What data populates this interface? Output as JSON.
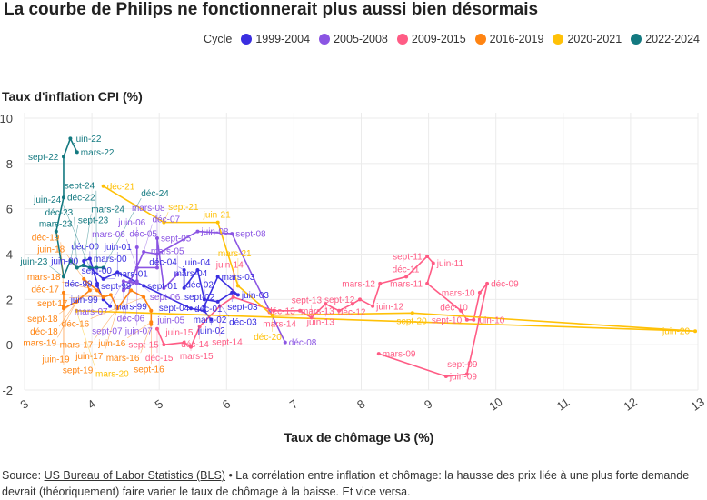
{
  "title": "La courbe de Philips ne fonctionnerait plus aussi bien désormais",
  "legend_title": "Cycle",
  "footer": {
    "prefix": "Source: ",
    "link": "US Bureau of Labor Statistics (BLS)",
    "text": " • La corrélation entre inflation et chômage: la hausse des prix liée à une plus forte demande devrait (théoriquement) faire varier le taux de chômage à la baisse. Et vice versa."
  },
  "chart_data": {
    "type": "line",
    "title": "La courbe de Philips ne fonctionnerait plus aussi bien désormais",
    "xlabel": "Taux de chômage U3 (%)",
    "ylabel": "Taux d'inflation CPI (%)",
    "xlim": [
      3,
      13
    ],
    "ylim": [
      -2,
      10
    ],
    "xticks": [
      3,
      4,
      5,
      6,
      7,
      8,
      9,
      10,
      11,
      12,
      13
    ],
    "yticks": [
      -2,
      0,
      2,
      4,
      6,
      8,
      10
    ],
    "grid": true,
    "legend_position": "top-right",
    "series": [
      {
        "name": "1999-2004",
        "color": "#3a2ee0",
        "points": [
          [
            "mars-99",
            4.27,
            1.7
          ],
          [
            "juin-99",
            4.17,
            2.0
          ],
          [
            "sept-99",
            4.08,
            2.6
          ],
          [
            "déc-99",
            4.08,
            2.7
          ],
          [
            "mars-00",
            3.97,
            3.8
          ],
          [
            "juin-00",
            3.88,
            3.7
          ],
          [
            "sept-00",
            3.88,
            3.5
          ],
          [
            "déc-00",
            3.97,
            3.4
          ],
          [
            "mars-01",
            4.17,
            2.9
          ],
          [
            "juin-01",
            4.38,
            3.2
          ],
          [
            "sept-01",
            4.77,
            2.6
          ],
          [
            "déc-01",
            5.47,
            1.6
          ],
          [
            "mars-02",
            5.67,
            1.5
          ],
          [
            "juin-02",
            5.77,
            1.1
          ],
          [
            "sept-02",
            5.67,
            1.5
          ],
          [
            "déc-02",
            5.67,
            1.7
          ],
          [
            "mars-03",
            5.87,
            3.0
          ],
          [
            "juin-03",
            6.17,
            2.2
          ],
          [
            "sept-03",
            6.08,
            2.3
          ],
          [
            "déc-03",
            5.87,
            1.9
          ],
          [
            "mars-04",
            5.67,
            2.0
          ],
          [
            "juin-04",
            5.57,
            3.3
          ],
          [
            "sept-04",
            5.37,
            2.5
          ],
          [
            "déc-04",
            5.37,
            3.3
          ]
        ]
      },
      {
        "name": "2005-2008",
        "color": "#8b55e3",
        "points": [
          [
            "mars-05",
            5.27,
            3.1
          ],
          [
            "juin-05",
            5.07,
            2.5
          ],
          [
            "sept-05",
            4.97,
            4.7
          ],
          [
            "déc-05",
            4.97,
            3.4
          ],
          [
            "mars-06",
            4.67,
            3.4
          ],
          [
            "juin-06",
            4.67,
            4.3
          ],
          [
            "sept-06",
            4.67,
            2.8
          ],
          [
            "déc-06",
            4.47,
            2.4
          ],
          [
            "mars-07",
            4.47,
            2.8
          ],
          [
            "juin-07",
            4.67,
            2.7
          ],
          [
            "sept-07",
            4.57,
            2.8
          ],
          [
            "déc-07",
            4.77,
            4.1
          ],
          [
            "mars-08",
            4.97,
            4.0
          ],
          [
            "juin-08",
            5.57,
            5.0
          ],
          [
            "sept-08",
            6.08,
            4.9
          ],
          [
            "déc-08",
            6.87,
            0.1
          ]
        ]
      },
      {
        "name": "2009-2015",
        "color": "#ff5c85",
        "points": [
          [
            "mars-09",
            8.26,
            -0.4
          ],
          [
            "juin-09",
            9.26,
            -1.4
          ],
          [
            "sept-09",
            9.57,
            -1.3
          ],
          [
            "déc-09",
            9.87,
            2.7
          ],
          [
            "mars-10",
            9.76,
            2.3
          ],
          [
            "juin-10",
            9.67,
            1.1
          ],
          [
            "sept-10",
            9.57,
            1.1
          ],
          [
            "déc-10",
            9.48,
            1.5
          ],
          [
            "mars-11",
            8.98,
            2.7
          ],
          [
            "juin-11",
            9.07,
            3.6
          ],
          [
            "sept-11",
            8.98,
            3.9
          ],
          [
            "déc-11",
            8.67,
            3.0
          ],
          [
            "mars-12",
            8.28,
            2.7
          ],
          [
            "juin-12",
            8.17,
            1.7
          ],
          [
            "sept-12",
            7.98,
            2.0
          ],
          [
            "déc-12",
            7.87,
            1.8
          ],
          [
            "mars-13",
            7.67,
            1.5
          ],
          [
            "juin-13",
            7.47,
            1.8
          ],
          [
            "sept-13",
            7.26,
            1.2
          ],
          [
            "déc-13",
            7.09,
            1.5
          ],
          [
            "mars-14",
            6.7,
            1.5
          ],
          [
            "juin-14",
            6.1,
            2.1
          ],
          [
            "sept-14",
            5.9,
            1.7
          ],
          [
            "déc-14",
            5.6,
            0.8
          ],
          [
            "mars-15",
            5.47,
            -0.1
          ],
          [
            "juin-15",
            5.37,
            0.1
          ],
          [
            "sept-15",
            5.07,
            0.0
          ],
          [
            "déc-15",
            4.97,
            0.7
          ]
        ]
      },
      {
        "name": "2016-2019",
        "color": "#ff8412",
        "points": [
          [
            "mars-16",
            4.88,
            0.9
          ],
          [
            "juin-16",
            4.88,
            1.0
          ],
          [
            "sept-16",
            4.88,
            1.5
          ],
          [
            "déc-16",
            4.77,
            2.1
          ],
          [
            "mars-17",
            4.58,
            2.4
          ],
          [
            "juin-17",
            4.38,
            1.6
          ],
          [
            "sept-17",
            4.28,
            2.2
          ],
          [
            "déc-17",
            4.17,
            2.1
          ],
          [
            "mars-18",
            4.08,
            2.4
          ],
          [
            "juin-18",
            3.88,
            2.9
          ],
          [
            "sept-18",
            3.97,
            2.4
          ],
          [
            "déc-18",
            3.77,
            1.9
          ],
          [
            "mars-19",
            3.77,
            1.9
          ],
          [
            "juin-19",
            3.58,
            1.6
          ],
          [
            "sept-19",
            3.58,
            1.7
          ],
          [
            "déc-19",
            3.58,
            2.3
          ]
        ]
      },
      {
        "name": "2020-2021",
        "color": "#ffc107",
        "points": [
          [
            "mars-20",
            3.77,
            1.5
          ],
          [
            "juin-20",
            12.96,
            0.6
          ],
          [
            "sept-20",
            8.76,
            1.4
          ],
          [
            "déc-20",
            6.68,
            1.3
          ],
          [
            "mars-21",
            6.17,
            2.6
          ],
          [
            "juin-21",
            5.87,
            5.4
          ],
          [
            "sept-21",
            5.07,
            5.4
          ],
          [
            "déc-21",
            4.17,
            7.0
          ]
        ]
      },
      {
        "name": "2022-2024",
        "color": "#137980",
        "points": [
          [
            "mars-22",
            3.78,
            8.5
          ],
          [
            "juin-22",
            3.68,
            9.1
          ],
          [
            "sept-22",
            3.58,
            8.3
          ],
          [
            "déc-22",
            3.58,
            6.5
          ],
          [
            "mars-23",
            3.47,
            5.0
          ],
          [
            "juin-23",
            3.58,
            3.0
          ],
          [
            "sept-23",
            3.68,
            3.7
          ],
          [
            "déc-23",
            3.78,
            3.4
          ],
          [
            "mars-24",
            3.87,
            3.5
          ],
          [
            "juin-24",
            3.97,
            3.4
          ],
          [
            "sept-24",
            4.07,
            3.4
          ],
          [
            "déc-24",
            4.17,
            3.4
          ]
        ]
      }
    ]
  }
}
